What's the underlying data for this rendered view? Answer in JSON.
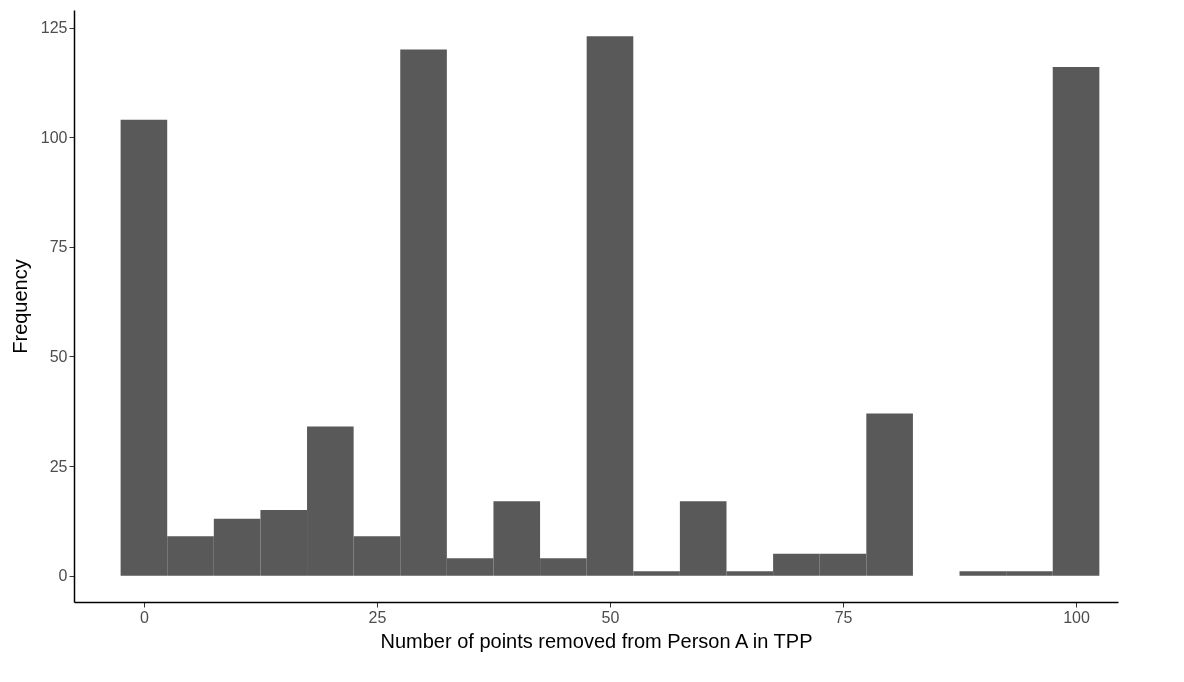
{
  "chart_data": {
    "type": "histogram",
    "xlabel": "Number of points removed from Person A in TPP",
    "ylabel": "Frequency",
    "color": "#595959",
    "bins": [
      -2.5,
      2.5,
      7.5,
      12.5,
      17.5,
      22.5,
      27.5,
      32.5,
      37.5,
      42.5,
      47.5,
      52.5,
      57.5,
      62.5,
      67.5,
      72.5,
      77.5,
      82.5,
      87.5,
      92.5,
      97.5,
      102.5
    ],
    "values": [
      104,
      9,
      13,
      15,
      34,
      9,
      120,
      4,
      17,
      4,
      123,
      1,
      17,
      1,
      5,
      5,
      37,
      0,
      1,
      1,
      116
    ],
    "xlim": [
      -7.5,
      104.5
    ],
    "xticks": [
      0,
      25,
      50,
      75,
      100
    ],
    "ylim": [
      -6,
      129
    ],
    "yticks": [
      0,
      25,
      50,
      75,
      100,
      125
    ],
    "grid": false
  }
}
